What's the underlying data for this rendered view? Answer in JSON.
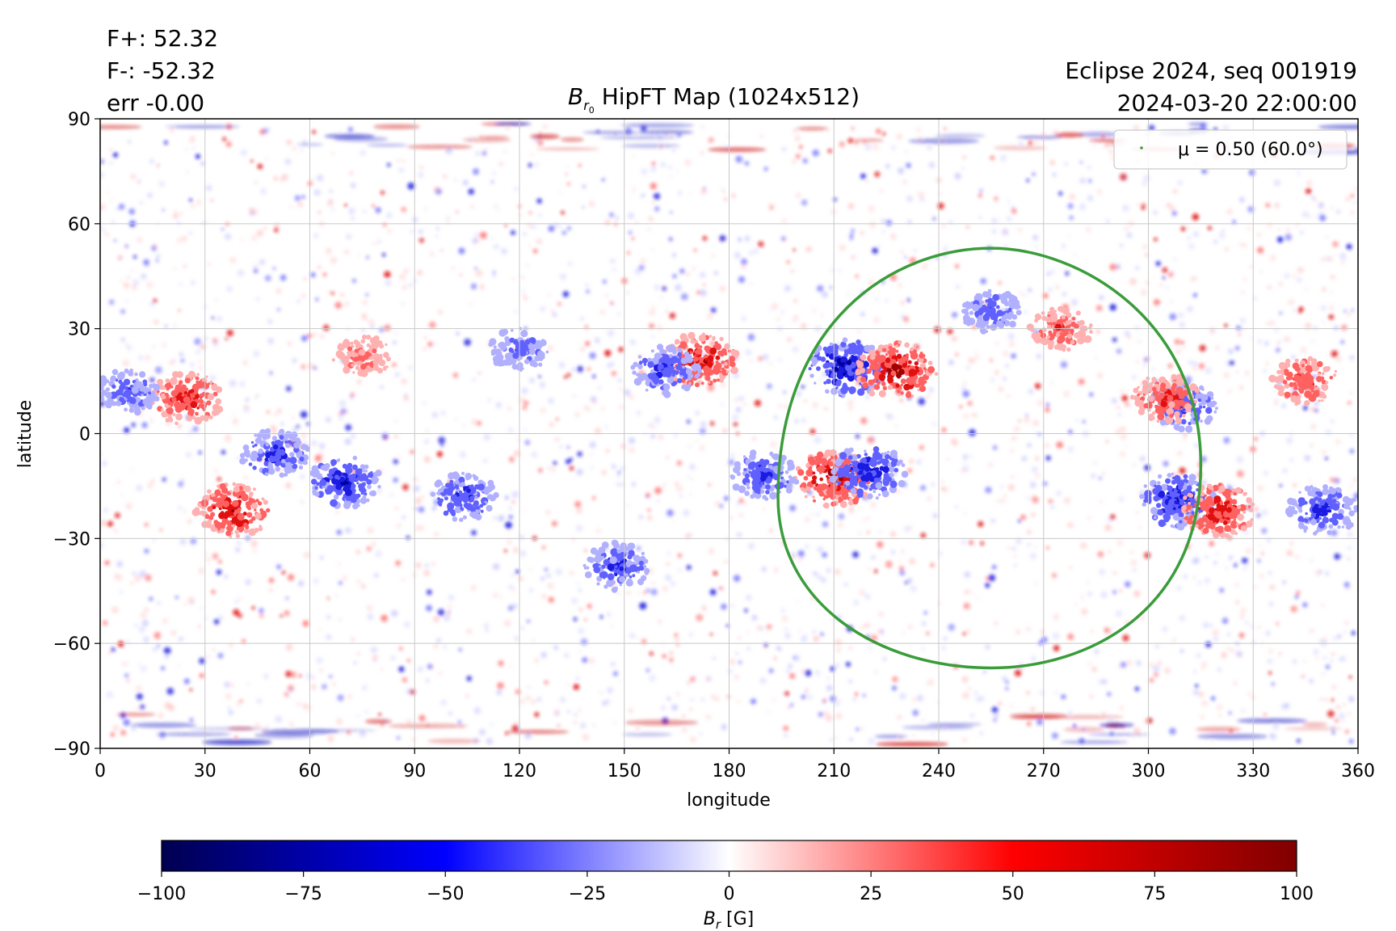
{
  "stats": {
    "fplus": "F+: 52.32",
    "fminus": "F-: -52.32",
    "err": "err -0.00"
  },
  "header_right": {
    "line1": "Eclipse 2024, seq 001919",
    "line2": "2024-03-20 22:00:00"
  },
  "title": {
    "main": "B",
    "sub": "r",
    "subsub": "0",
    "rest": " HipFT Map (1024x512)"
  },
  "legend": {
    "mu_label": "μ = 0.50 (60.0°)"
  },
  "colors": {
    "neg_max": "#000050",
    "neg_mid": "#0000ff",
    "zero": "#ffffff",
    "pos_mid": "#ff0000",
    "pos_max": "#800000",
    "contour": "#3a9c3a",
    "grid": "#c8c8c8"
  },
  "chart_data": [
    {
      "type": "heatmap",
      "title": "B_r0 HipFT Map (1024x512)",
      "xlabel": "longitude",
      "ylabel": "latitude",
      "xlim": [
        0,
        360
      ],
      "ylim": [
        -90,
        90
      ],
      "xticks": [
        0,
        30,
        60,
        90,
        120,
        150,
        180,
        210,
        240,
        270,
        300,
        330,
        360
      ],
      "yticks": [
        90,
        60,
        30,
        0,
        -30,
        -60,
        -90
      ],
      "grid": true,
      "legend_placement": "top-right",
      "colormap": "seismic",
      "clim": [
        -100,
        100
      ],
      "active_regions": [
        {
          "lon": 214,
          "lat": 19,
          "polarity": "negative",
          "strength": 95
        },
        {
          "lon": 228,
          "lat": 18,
          "polarity": "positive",
          "strength": 95
        },
        {
          "lon": 210,
          "lat": -13,
          "polarity": "positive",
          "strength": 90
        },
        {
          "lon": 220,
          "lat": -11,
          "polarity": "negative",
          "strength": 85
        },
        {
          "lon": 172,
          "lat": 21,
          "polarity": "positive",
          "strength": 85
        },
        {
          "lon": 162,
          "lat": 18,
          "polarity": "negative",
          "strength": 70
        },
        {
          "lon": 38,
          "lat": -22,
          "polarity": "positive",
          "strength": 85
        },
        {
          "lon": 50,
          "lat": -6,
          "polarity": "negative",
          "strength": 70
        },
        {
          "lon": 70,
          "lat": -14,
          "polarity": "negative",
          "strength": 80
        },
        {
          "lon": 25,
          "lat": 10,
          "polarity": "positive",
          "strength": 80
        },
        {
          "lon": 8,
          "lat": 12,
          "polarity": "negative",
          "strength": 60
        },
        {
          "lon": 308,
          "lat": -19,
          "polarity": "negative",
          "strength": 85
        },
        {
          "lon": 320,
          "lat": -22,
          "polarity": "positive",
          "strength": 85
        },
        {
          "lon": 310,
          "lat": 8,
          "polarity": "negative",
          "strength": 70
        },
        {
          "lon": 305,
          "lat": 10,
          "polarity": "positive",
          "strength": 70
        },
        {
          "lon": 350,
          "lat": -22,
          "polarity": "negative",
          "strength": 75
        },
        {
          "lon": 345,
          "lat": 15,
          "polarity": "positive",
          "strength": 70
        },
        {
          "lon": 190,
          "lat": -12,
          "polarity": "negative",
          "strength": 70
        },
        {
          "lon": 148,
          "lat": -38,
          "polarity": "negative",
          "strength": 70
        },
        {
          "lon": 104,
          "lat": -18,
          "polarity": "negative",
          "strength": 70
        },
        {
          "lon": 255,
          "lat": 35,
          "polarity": "negative",
          "strength": 55
        },
        {
          "lon": 275,
          "lat": 30,
          "polarity": "positive",
          "strength": 60
        },
        {
          "lon": 120,
          "lat": 24,
          "polarity": "negative",
          "strength": 55
        },
        {
          "lon": 75,
          "lat": 22,
          "polarity": "positive",
          "strength": 55
        }
      ],
      "contour": {
        "label": "μ = 0.50 (60.0°)",
        "center_lon": 255,
        "lat_top": 53,
        "lat_bottom": -67,
        "lon_left": 194,
        "lon_right": 315
      }
    },
    {
      "type": "colorbar",
      "label": "B_r [G]",
      "ticks": [
        -100,
        -75,
        -50,
        -25,
        0,
        25,
        50,
        75,
        100
      ],
      "tick_labels": [
        "−100",
        "−75",
        "−50",
        "−25",
        "0",
        "25",
        "50",
        "75",
        "100"
      ]
    }
  ],
  "axis_labels": {
    "x": "longitude",
    "y": "latitude",
    "cbar_main": "B",
    "cbar_sub": "r",
    "cbar_unit": " [G]"
  }
}
